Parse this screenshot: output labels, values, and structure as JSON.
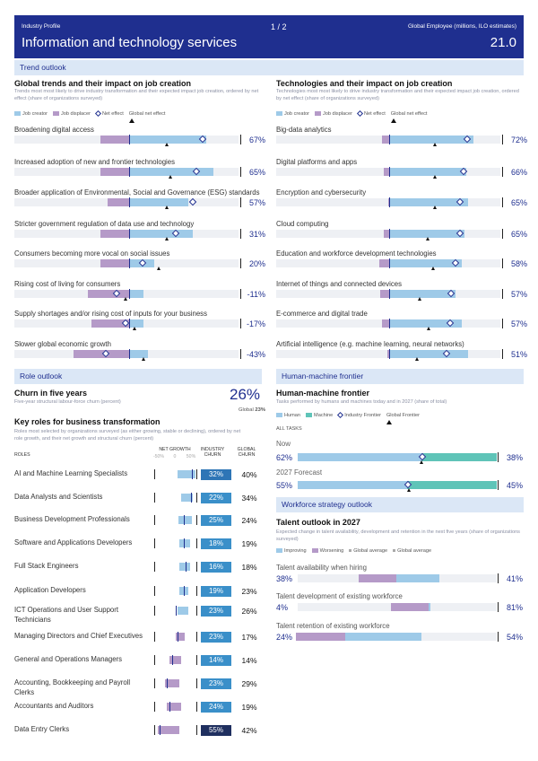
{
  "header": {
    "left": "Industry Profile",
    "page": "1 / 2",
    "right": "Global Employee (millions, ILO estimates)",
    "title": "Information and technology services",
    "value": "21.0"
  },
  "trend_outlook": "Trend outlook",
  "global_trends": {
    "title": "Global trends and their impact on job creation",
    "subtitle": "Trends most most likely to drive industry transformation and their expected impact job creation, ordered by net effect (share of organizations surveyed)",
    "legend": [
      "Job creator",
      "Job displacer",
      "Net effect",
      "Global net effect"
    ],
    "items": [
      {
        "label": "Broadening digital access",
        "value": "67%"
      },
      {
        "label": "Increased adoption of new and frontier technologies",
        "value": "65%"
      },
      {
        "label": "Broader application of Environmental, Social and Governance (ESG) standards",
        "value": "57%"
      },
      {
        "label": "Stricter government regulation of data use and technology",
        "value": "31%"
      },
      {
        "label": "Consumers becoming more vocal on social issues",
        "value": "20%"
      },
      {
        "label": "Rising cost of living for consumers",
        "value": "-11%"
      },
      {
        "label": "Supply shortages and/or rising cost of inputs for your business",
        "value": "-17%"
      },
      {
        "label": "Slower global economic growth",
        "value": "-43%"
      }
    ]
  },
  "tech": {
    "title": "Technologies and their impact on job creation",
    "subtitle": "Technologies most most likely to drive industry transformation and their expected impact job creation, ordered by net effect (share of organizations surveyed)",
    "legend": [
      "Job creator",
      "Job displacer",
      "Net effect",
      "Global net effect"
    ],
    "items": [
      {
        "label": "Big-data analytics",
        "value": "72%"
      },
      {
        "label": "Digital platforms and apps",
        "value": "66%"
      },
      {
        "label": "Encryption and cybersecurity",
        "value": "65%"
      },
      {
        "label": "Cloud computing",
        "value": "65%"
      },
      {
        "label": "Education and workforce development technologies",
        "value": "58%"
      },
      {
        "label": "Internet of things and connected devices",
        "value": "57%"
      },
      {
        "label": "E-commerce and digital trade",
        "value": "57%"
      },
      {
        "label": "Artificial intelligence (e.g. machine learning, neural networks)",
        "value": "51%"
      }
    ]
  },
  "role_outlook": "Role outlook",
  "churn": {
    "title": "Churn in five years",
    "subtitle": "Five-year structural labour-force churn (percent)",
    "value": "26%",
    "global_label": "Global",
    "global_value": "23%"
  },
  "key_roles": {
    "title": "Key roles for business transformation",
    "subtitle": "Roles most selected by organizations surveyed (as either growing, stable or declining), ordered by net role growth, and their net growth and structural churn (percent)",
    "col_roles": "ROLES",
    "col_net": "NET GROWTH",
    "col_ind": "INDUSTRY CHURN",
    "col_glob": "GLOBAL CHURN",
    "axis": [
      "-50%",
      "0",
      "50%"
    ],
    "rows": [
      {
        "role": "AI and Machine Learning Specialists",
        "ind": "32%",
        "glob": "40%"
      },
      {
        "role": "Data Analysts and Scientists",
        "ind": "22%",
        "glob": "34%"
      },
      {
        "role": "Business Development Professionals",
        "ind": "25%",
        "glob": "24%"
      },
      {
        "role": "Software and Applications Developers",
        "ind": "18%",
        "glob": "19%"
      },
      {
        "role": "Full Stack Engineers",
        "ind": "16%",
        "glob": "18%"
      },
      {
        "role": "Application Developers",
        "ind": "19%",
        "glob": "23%"
      },
      {
        "role": "ICT Operations and User Support Technicians",
        "ind": "23%",
        "glob": "26%"
      },
      {
        "role": "Managing Directors and Chief Executives",
        "ind": "23%",
        "glob": "17%"
      },
      {
        "role": "General and Operations Managers",
        "ind": "14%",
        "glob": "14%"
      },
      {
        "role": "Accounting, Bookkeeping and Payroll Clerks",
        "ind": "23%",
        "glob": "29%"
      },
      {
        "role": "Accountants and Auditors",
        "ind": "24%",
        "glob": "19%"
      },
      {
        "role": "Data Entry Clerks",
        "ind": "55%",
        "glob": "42%"
      }
    ]
  },
  "hmf": {
    "band": "Human-machine frontier",
    "title": "Human-machine frontier",
    "subtitle": "Tasks performed by humans and machines today and in 2027 (share of total)",
    "legend": [
      "Human",
      "Machine",
      "Industry Frontier",
      "Global Frontier"
    ],
    "all_tasks": "ALL TASKS",
    "now_label": "Now",
    "now_human": "62%",
    "now_machine": "38%",
    "fc_label": "2027 Forecast",
    "fc_human": "55%",
    "fc_machine": "45%"
  },
  "workforce": {
    "band": "Workforce strategy outlook",
    "title": "Talent outlook in 2027",
    "subtitle": "Expected change in talent availability, development and retention in the next five years (share of organizations surveyed)",
    "legend": [
      "Improving",
      "Worsening",
      "Global average",
      "Global average"
    ],
    "items": [
      {
        "label": "Talent availability when hiring",
        "left": "38%",
        "right": "41%"
      },
      {
        "label": "Talent development of existing workforce",
        "left": "4%",
        "right": "81%"
      },
      {
        "label": "Talent retention of existing workforce",
        "left": "24%",
        "right": "54%"
      }
    ]
  }
}
